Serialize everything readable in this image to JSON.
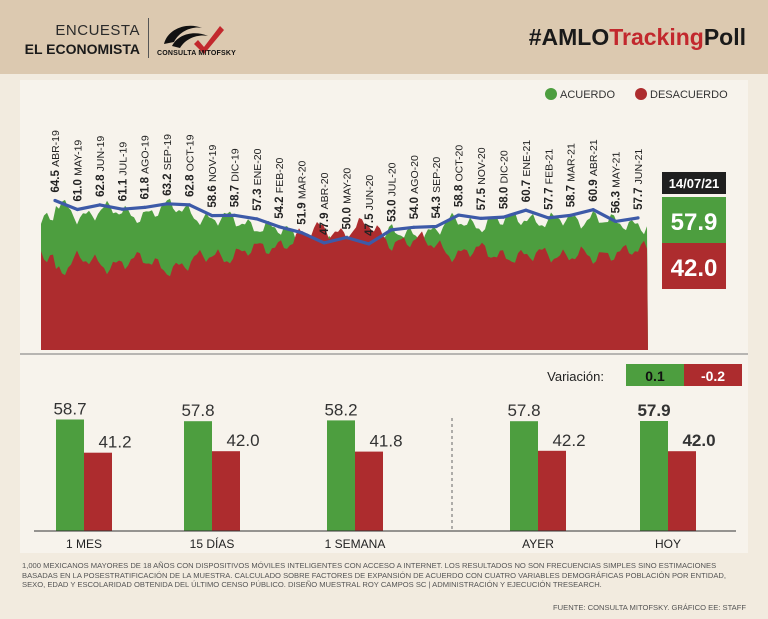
{
  "header": {
    "survey_line1": "ENCUESTA",
    "survey_line2": "EL ECONOMISTA",
    "logo_text": "CONSULTA MITOFSKY",
    "title_prefix": "#AMLO",
    "title_highlight": "Tracking",
    "title_suffix": "Poll"
  },
  "colors": {
    "green": "#4d9e3f",
    "red": "#ad2c2e",
    "line": "#3d5aa8",
    "dark": "#1f1f1f"
  },
  "chart_data": [
    {
      "type": "area",
      "title": "#AMLOTrackingPoll",
      "legend": [
        "ACUERDO",
        "DESACUERDO"
      ],
      "legend_position": "top-right",
      "ylim": [
        0,
        100
      ],
      "series_months": [
        "ABR-19",
        "MAY-19",
        "JUN-19",
        "JUL-19",
        "AGO-19",
        "SEP-19",
        "OCT-19",
        "NOV-19",
        "DIC-19",
        "ENE-20",
        "FEB-20",
        "MAR-20",
        "ABR-20",
        "MAY-20",
        "JUN-20",
        "JUL-20",
        "AGO-20",
        "SEP-20",
        "OCT-20",
        "NOV-20",
        "DIC-20",
        "ENE-21",
        "FEB-21",
        "MAR-21",
        "ABR-21",
        "MAY-21",
        "JUN-21"
      ],
      "monthly_approval": [
        "64.5",
        "61.0",
        "62.8",
        "61.1",
        "61.8",
        "63.2",
        "62.8",
        "58.6",
        "58.7",
        "57.3",
        "54.2",
        "51.9",
        "47.9",
        "50.0",
        "47.5",
        "53.0",
        "54.0",
        "54.3",
        "58.8",
        "57.5",
        "58.0",
        "60.7",
        "57.7",
        "58.7",
        "60.9",
        "56.3",
        "57.7"
      ],
      "current_date": "14/07/21",
      "current_acuerdo": "57.9",
      "current_desacuerdo": "42.0"
    },
    {
      "type": "bar",
      "variation_label": "Variación:",
      "variation_acuerdo": "0.1",
      "variation_desacuerdo": "-0.2",
      "series_names": [
        "Acuerdo",
        "Desacuerdo"
      ],
      "ylim": [
        0,
        100
      ],
      "groups": [
        {
          "label": "1 MES",
          "acuerdo": "58.7",
          "desacuerdo": "41.2"
        },
        {
          "label": "15 DÍAS",
          "acuerdo": "57.8",
          "desacuerdo": "42.0"
        },
        {
          "label": "1 SEMANA",
          "acuerdo": "58.2",
          "desacuerdo": "41.8"
        },
        {
          "label": "AYER",
          "acuerdo": "57.8",
          "desacuerdo": "42.2"
        },
        {
          "label": "HOY",
          "acuerdo": "57.9",
          "desacuerdo": "42.0"
        }
      ]
    }
  ],
  "footnote": "1,000 mexicanos mayores de 18 años con dispositivos móviles inteligentes con acceso a internet. Los resultados no son frecuencias simples sino estimaciones basadas en la posestratificación de la muestra. Calculado sobre factores de expansión de acuerdo con cuatro variables demográficas población por entidad, sexo, edad y escolaridad obtenida del último censo público. Diseño muestral Roy Campos SC | Administración y ejecución Tresearch.",
  "source": "FUENTE: CONSULTA MITOFSKY. GRÁFICO EE: STAFF"
}
